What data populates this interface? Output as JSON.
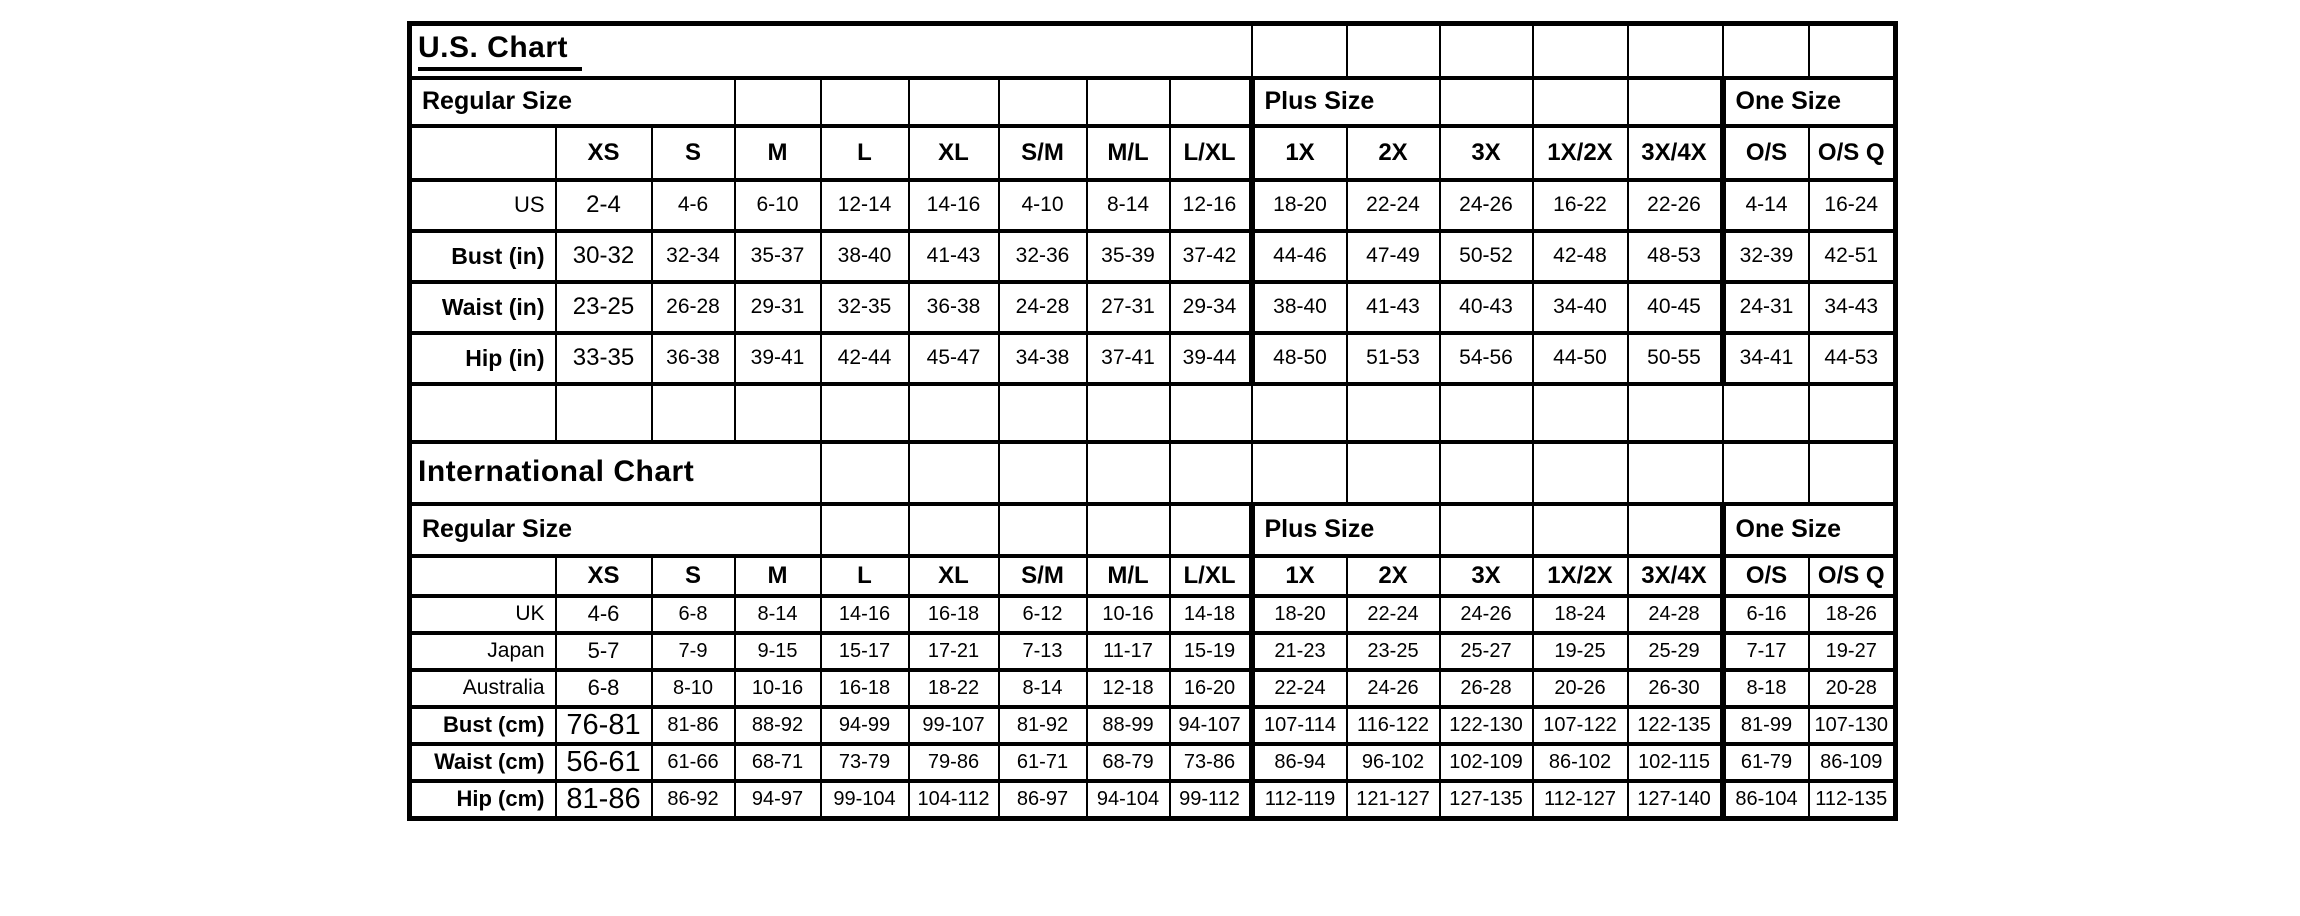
{
  "page": {
    "background": "#ffffff",
    "line_color": "#000000"
  },
  "chart_data": [
    {
      "type": "table",
      "title": "U.S. Chart",
      "size_groups": {
        "regular": "Regular Size",
        "plus": "Plus Size",
        "one": "One Size"
      },
      "columns": [
        "XS",
        "S",
        "M",
        "L",
        "XL",
        "S/M",
        "M/L",
        "L/XL",
        "1X",
        "2X",
        "3X",
        "1X/2X",
        "3X/4X",
        "O/S",
        "O/S Q"
      ],
      "rows": [
        {
          "label": "US",
          "values": [
            "2-4",
            "4-6",
            "6-10",
            "12-14",
            "14-16",
            "4-10",
            "8-14",
            "12-16",
            "18-20",
            "22-24",
            "24-26",
            "16-22",
            "22-26",
            "4-14",
            "16-24"
          ]
        },
        {
          "label": "Bust (in)",
          "values": [
            "30-32",
            "32-34",
            "35-37",
            "38-40",
            "41-43",
            "32-36",
            "35-39",
            "37-42",
            "44-46",
            "47-49",
            "50-52",
            "42-48",
            "48-53",
            "32-39",
            "42-51"
          ]
        },
        {
          "label": "Waist (in)",
          "values": [
            "23-25",
            "26-28",
            "29-31",
            "32-35",
            "36-38",
            "24-28",
            "27-31",
            "29-34",
            "38-40",
            "41-43",
            "40-43",
            "34-40",
            "40-45",
            "24-31",
            "34-43"
          ]
        },
        {
          "label": "Hip (in)",
          "values": [
            "33-35",
            "36-38",
            "39-41",
            "42-44",
            "45-47",
            "34-38",
            "37-41",
            "39-44",
            "48-50",
            "51-53",
            "54-56",
            "44-50",
            "50-55",
            "34-41",
            "44-53"
          ]
        }
      ]
    },
    {
      "type": "table",
      "title": "International Chart",
      "size_groups": {
        "regular": "Regular Size",
        "plus": "Plus Size",
        "one": "One Size"
      },
      "columns": [
        "XS",
        "S",
        "M",
        "L",
        "XL",
        "S/M",
        "M/L",
        "L/XL",
        "1X",
        "2X",
        "3X",
        "1X/2X",
        "3X/4X",
        "O/S",
        "O/S Q"
      ],
      "rows": [
        {
          "label": "UK",
          "values": [
            "4-6",
            "6-8",
            "8-14",
            "14-16",
            "16-18",
            "6-12",
            "10-16",
            "14-18",
            "18-20",
            "22-24",
            "24-26",
            "18-24",
            "24-28",
            "6-16",
            "18-26"
          ]
        },
        {
          "label": "Japan",
          "values": [
            "5-7",
            "7-9",
            "9-15",
            "15-17",
            "17-21",
            "7-13",
            "11-17",
            "15-19",
            "21-23",
            "23-25",
            "25-27",
            "19-25",
            "25-29",
            "7-17",
            "19-27"
          ]
        },
        {
          "label": "Australia",
          "values": [
            "6-8",
            "8-10",
            "10-16",
            "16-18",
            "18-22",
            "8-14",
            "12-18",
            "16-20",
            "22-24",
            "24-26",
            "26-28",
            "20-26",
            "26-30",
            "8-18",
            "20-28"
          ]
        },
        {
          "label": "Bust (cm)",
          "values": [
            "76-81",
            "81-86",
            "88-92",
            "94-99",
            "99-107",
            "81-92",
            "88-99",
            "94-107",
            "107-114",
            "116-122",
            "122-130",
            "107-122",
            "122-135",
            "81-99",
            "107-130"
          ]
        },
        {
          "label": "Waist (cm)",
          "values": [
            "56-61",
            "61-66",
            "68-71",
            "73-79",
            "79-86",
            "61-71",
            "68-79",
            "73-86",
            "86-94",
            "96-102",
            "102-109",
            "86-102",
            "102-115",
            "61-79",
            "86-109"
          ]
        },
        {
          "label": "Hip (cm)",
          "values": [
            "81-86",
            "86-92",
            "94-97",
            "99-104",
            "104-112",
            "86-97",
            "94-104",
            "99-112",
            "112-119",
            "121-127",
            "127-135",
            "112-127",
            "127-140",
            "86-104",
            "112-135"
          ]
        }
      ]
    }
  ]
}
